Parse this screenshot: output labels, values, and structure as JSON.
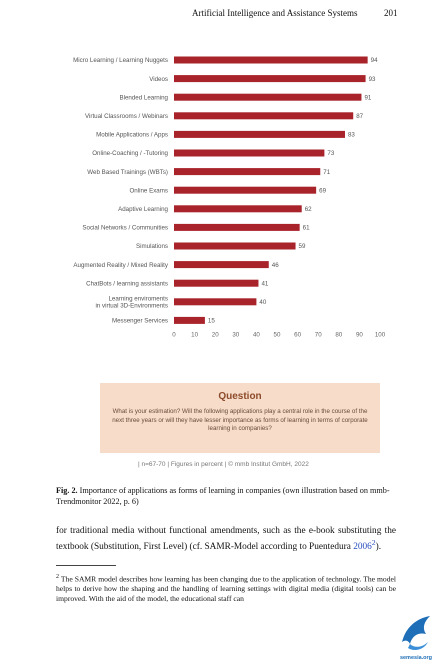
{
  "header": {
    "title": "Artificial Intelligence and Assistance Systems",
    "page_number": "201"
  },
  "chart_data": {
    "type": "bar",
    "orientation": "horizontal",
    "categories": [
      "Micro Learning / Learning Nuggets",
      "Videos",
      "Blended Learning",
      "Virtual Classrooms / Webinars",
      "Mobile Applications / Apps",
      "Online-Coaching / -Tutoring",
      "Web Based Trainings (WBTs)",
      "Online Exams",
      "Adaptive Learning",
      "Social Networks / Communities",
      "Simulations",
      "Augmented Reality / Mixed Reality",
      "ChatBots / learning assistants",
      "Learning enviroments in virtual 3D-Environments",
      "Messenger Services"
    ],
    "category_lines": [
      [
        "Micro Learning / Learning Nuggets"
      ],
      [
        "Videos"
      ],
      [
        "Blended Learning"
      ],
      [
        "Virtual Classrooms / Webinars"
      ],
      [
        "Mobile Applications / Apps"
      ],
      [
        "Online-Coaching / -Tutoring"
      ],
      [
        "Web Based Trainings (WBTs)"
      ],
      [
        "Online Exams"
      ],
      [
        "Adaptive Learning"
      ],
      [
        "Social Networks / Communities"
      ],
      [
        "Simulations"
      ],
      [
        "Augmented Reality / Mixed Reality"
      ],
      [
        "ChatBots / learning assistants"
      ],
      [
        "Learning enviroments",
        "in virtual 3D-Environments"
      ],
      [
        "Messenger Services"
      ]
    ],
    "values": [
      94,
      93,
      91,
      87,
      83,
      73,
      71,
      69,
      62,
      61,
      59,
      46,
      41,
      40,
      15
    ],
    "value_labels": [
      "94",
      "93",
      "91",
      "87",
      "83",
      "73",
      "71",
      "69",
      "62",
      "61",
      "59",
      "46",
      "41",
      "40",
      "15"
    ],
    "xlim": [
      0,
      100
    ],
    "xticks": [
      0,
      10,
      20,
      30,
      40,
      50,
      60,
      70,
      80,
      90,
      100
    ],
    "xtick_labels": [
      "0",
      "10",
      "20",
      "30",
      "40",
      "50",
      "60",
      "70",
      "80",
      "90",
      "100"
    ],
    "bar_color": "#a8232a",
    "grid": false,
    "title": "",
    "xlabel": "",
    "ylabel": ""
  },
  "question": {
    "title": "Question",
    "text": "What is your estimation? Will the following applications play a central role in the course of the next three years or will they have lesser importance as forms of learning in terms of corporate learning in companies?",
    "bg_color": "#f6dcc9"
  },
  "chart_source": "| n=67-70 | Figures in percent | © mmb Institut GmbH, 2022",
  "caption": {
    "label": "Fig. 2.",
    "text": "Importance of applications as forms of learning in companies (own illustration based on mmb-Trendmonitor 2022, p. 6)"
  },
  "body": {
    "text_before": "for traditional media without functional amendments, such as the e-book substituting the textbook (Substitution, First Level) (cf. SAMR-Model according to Puentedura ",
    "cite": "2006",
    "cite_sup": "2",
    "text_after": ")."
  },
  "footnote": {
    "marker": "2",
    "text": "The SAMR model describes how learning has been changing due to the application of technology. The model helps to derive how the shaping and the handling of learning settings with digital media (digital tools) can be improved. With the aid of the model, the educational staff can"
  },
  "watermark": {
    "text": "semesia.org",
    "icon": "bird-logo-icon",
    "color": "#1f6fb8"
  }
}
